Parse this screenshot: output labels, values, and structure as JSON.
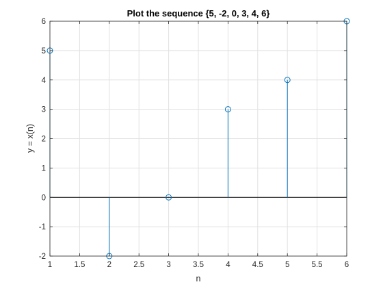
{
  "chart_data": {
    "type": "scatter",
    "style": "stem",
    "title": "Plot the sequence {5, -2, 0, 3, 4, 6}",
    "xlabel": "n",
    "ylabel": "y = x(n)",
    "xlim": [
      1,
      6
    ],
    "ylim": [
      -2,
      6
    ],
    "xticks": [
      1,
      1.5,
      2,
      2.5,
      3,
      3.5,
      4,
      4.5,
      5,
      5.5,
      6
    ],
    "yticks": [
      -2,
      -1,
      0,
      1,
      2,
      3,
      4,
      5,
      6
    ],
    "grid": true,
    "baseline": 0,
    "series": [
      {
        "x": [
          1,
          2,
          3,
          4,
          5,
          6
        ],
        "y": [
          5,
          -2,
          0,
          3,
          4,
          6
        ],
        "color": "#0072BD",
        "marker": "open-circle"
      }
    ]
  }
}
